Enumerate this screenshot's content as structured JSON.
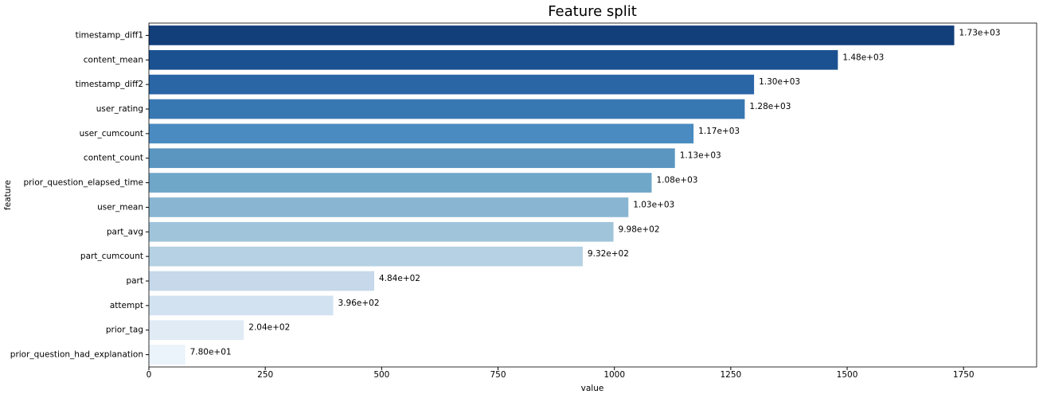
{
  "chart_data": {
    "type": "barh",
    "title": "Feature split",
    "x_label": "value",
    "y_label": "feature",
    "categories": [
      "timestamp_diff1",
      "content_mean",
      "timestamp_diff2",
      "user_rating",
      "user_cumcount",
      "content_count",
      "prior_question_elapsed_time",
      "user_mean",
      "part_avg",
      "part_cumcount",
      "part",
      "attempt",
      "prior_tag",
      "prior_question_had_explanation"
    ],
    "values": [
      1730,
      1480,
      1300,
      1280,
      1170,
      1130,
      1080,
      1030,
      998,
      932,
      484,
      396,
      204,
      78
    ],
    "value_labels": [
      "1.73e+03",
      "1.48e+03",
      "1.30e+03",
      "1.28e+03",
      "1.17e+03",
      "1.13e+03",
      "1.08e+03",
      "1.03e+03",
      "9.98e+02",
      "9.32e+02",
      "4.84e+02",
      "3.96e+02",
      "2.04e+02",
      "7.80e+01"
    ],
    "colors": [
      "#123f7a",
      "#1b5190",
      "#2a66a6",
      "#3878b2",
      "#4a8bc1",
      "#5b96c1",
      "#6fa7c9",
      "#89b5d2",
      "#a0c4da",
      "#b5d1e3",
      "#c6d8ea",
      "#d2e2f1",
      "#e1ebf6",
      "#ebf3fb"
    ],
    "xlim": [
      0,
      1907
    ],
    "xticks": [
      0,
      250,
      500,
      750,
      1000,
      1250,
      1500,
      1750
    ],
    "grid": false
  }
}
